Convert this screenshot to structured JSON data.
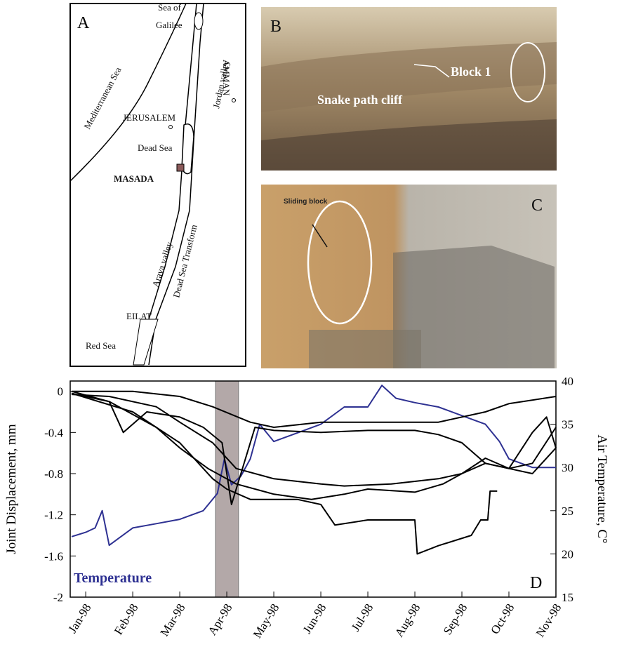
{
  "map": {
    "panel": "A",
    "labels": [
      "Sea of",
      "Galilee",
      "Mediterranean Sea",
      "Jordan valley",
      "AMMAN",
      "JERUSALEM",
      "Dead Sea",
      "MASADA",
      "Arava valley",
      "Dead Sea Transform",
      "EILAT",
      "Red Sea"
    ]
  },
  "photo_b": {
    "panel": "B",
    "labels": [
      "Block 1",
      "Snake path cliff"
    ]
  },
  "photo_c": {
    "panel": "C",
    "labels": [
      "Sliding block"
    ]
  },
  "chart_data": {
    "type": "line",
    "panel": "D",
    "y_label": "Joint Displacement, mm",
    "y2_label": "Air Temperature, C°",
    "xlim": [
      0.67,
      11
    ],
    "ylim": [
      -2,
      0.1
    ],
    "y2lim": [
      15,
      40
    ],
    "xticks": [
      {
        "value": 1,
        "label": "Jan-98"
      },
      {
        "value": 2,
        "label": "Feb-98"
      },
      {
        "value": 3,
        "label": "Mar-98"
      },
      {
        "value": 4,
        "label": "Apr-98"
      },
      {
        "value": 5,
        "label": "May-98"
      },
      {
        "value": 6,
        "label": "Jun-98"
      },
      {
        "value": 7,
        "label": "Jul-98"
      },
      {
        "value": 8,
        "label": "Aug-98"
      },
      {
        "value": 9,
        "label": "Sep-98"
      },
      {
        "value": 10,
        "label": "Oct-98"
      },
      {
        "value": 11,
        "label": "Nov-98"
      }
    ],
    "yticks": [
      0,
      -0.4,
      -0.8,
      -1.2,
      -1.6,
      -2
    ],
    "y2ticks": [
      15,
      20,
      25,
      30,
      35,
      40
    ],
    "shaded_span": [
      3.76,
      4.25
    ],
    "series": [
      {
        "name": "Temperature",
        "color": "#2e3192",
        "axis": "y2",
        "x": [
          0.7,
          1,
          1.2,
          1.35,
          1.5,
          2,
          2.5,
          3,
          3.5,
          3.8,
          3.95,
          4.1,
          4.3,
          4.5,
          4.7,
          5,
          5.5,
          6,
          6.5,
          7,
          7.3,
          7.6,
          8,
          8.5,
          9,
          9.5,
          9.8,
          10,
          10.5,
          11
        ],
        "values": [
          22,
          22.5,
          23,
          25,
          21,
          23,
          23.5,
          24,
          25,
          27,
          31,
          28,
          29,
          31,
          35,
          33,
          34,
          35,
          37,
          37,
          39.5,
          38,
          37.5,
          37,
          36,
          35,
          33,
          31,
          30,
          30
        ]
      },
      {
        "color": "#000000",
        "x": [
          0.7,
          2,
          3,
          3.7,
          4.5,
          5,
          6,
          7,
          8,
          8.5,
          9.5,
          10,
          11
        ],
        "values": [
          0,
          0,
          -0.05,
          -0.15,
          -0.3,
          -0.35,
          -0.3,
          -0.3,
          -0.3,
          -0.3,
          -0.2,
          -0.12,
          -0.05
        ]
      },
      {
        "color": "#000000",
        "x": [
          0.7,
          1.5,
          1.8,
          2.3,
          3,
          3.5,
          3.9,
          4.1,
          4.3,
          4.6,
          5,
          6,
          7,
          8,
          8.5,
          9,
          9.5,
          10,
          10.5,
          10.8,
          11
        ],
        "values": [
          0,
          -0.1,
          -0.4,
          -0.2,
          -0.25,
          -0.35,
          -0.5,
          -1.1,
          -0.8,
          -0.35,
          -0.38,
          -0.4,
          -0.38,
          -0.38,
          -0.42,
          -0.5,
          -0.7,
          -0.75,
          -0.4,
          -0.25,
          -0.55
        ]
      },
      {
        "color": "#000000",
        "x": [
          0.7,
          1.5,
          2.5,
          3,
          3.7,
          4.2,
          5,
          6,
          6.5,
          7.5,
          8.5,
          9,
          9.5,
          10,
          10.5,
          11
        ],
        "values": [
          -0.03,
          -0.05,
          -0.15,
          -0.3,
          -0.5,
          -0.75,
          -0.85,
          -0.9,
          -0.92,
          -0.9,
          -0.85,
          -0.8,
          -0.65,
          -0.75,
          -0.7,
          -0.35
        ]
      },
      {
        "color": "#000000",
        "x": [
          0.7,
          1.5,
          2.5,
          3,
          3.6,
          4.2,
          5,
          5.8,
          6.5,
          7,
          8,
          8.6,
          9,
          9.5,
          10,
          10.5,
          11
        ],
        "values": [
          -0.02,
          -0.1,
          -0.35,
          -0.55,
          -0.75,
          -0.9,
          -1,
          -1.05,
          -1,
          -0.95,
          -0.98,
          -0.9,
          -0.8,
          -0.7,
          -0.75,
          -0.8,
          -0.55
        ]
      },
      {
        "color": "#000000",
        "x": [
          0.7,
          2,
          3,
          3.7,
          4,
          4.5,
          5,
          5.5,
          6,
          6.3,
          7,
          7.5,
          8,
          8.05,
          8.5,
          9.2,
          9.4,
          9.55,
          9.6,
          9.75
        ],
        "values": [
          -0.02,
          -0.2,
          -0.5,
          -0.85,
          -0.95,
          -1.05,
          -1.05,
          -1.05,
          -1.1,
          -1.3,
          -1.25,
          -1.25,
          -1.25,
          -1.58,
          -1.5,
          -1.4,
          -1.25,
          -1.25,
          -0.97,
          -0.97
        ]
      }
    ]
  }
}
